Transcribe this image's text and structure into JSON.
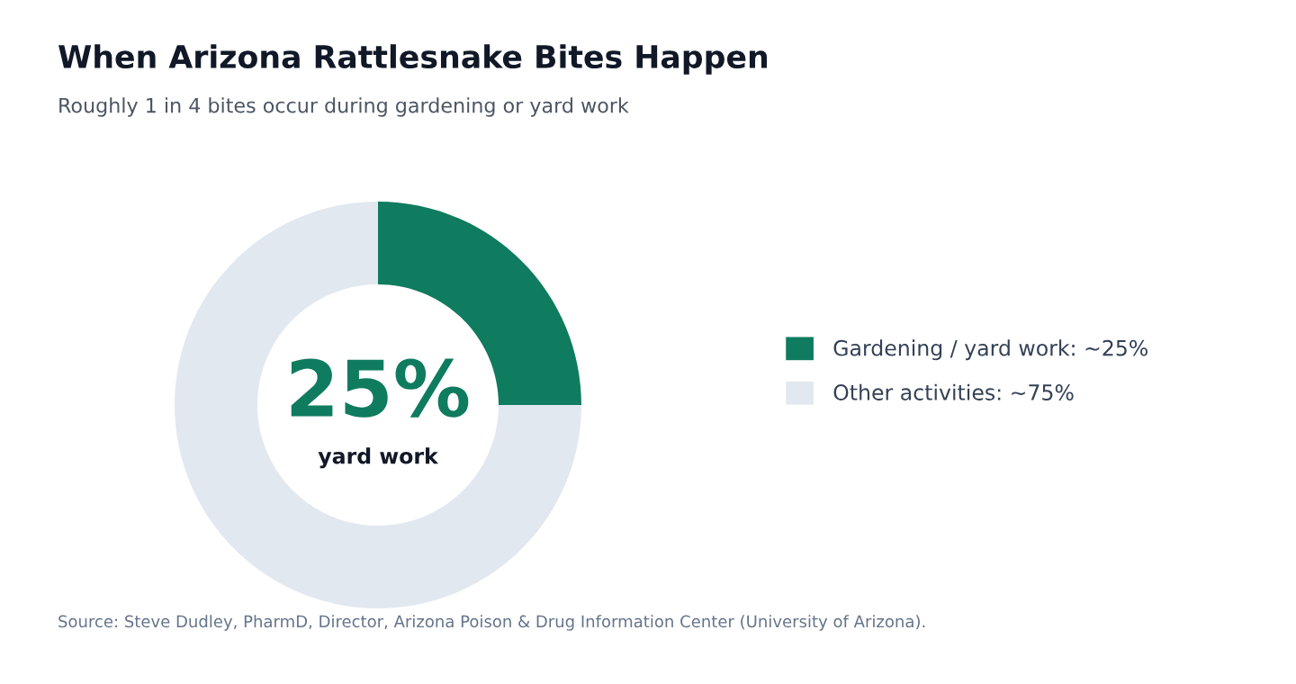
{
  "chart_data": {
    "type": "donut",
    "title": "When Arizona Rattlesnake Bites Happen",
    "subtitle": "Roughly 1 in 4 bites occur during gardening or yard work",
    "categories": [
      "Gardening / yard work: ~25%",
      "Other activities: ~75%"
    ],
    "values": [
      25,
      75
    ],
    "colors": [
      "#0f7b5f",
      "#e2e8f0"
    ],
    "legend": "right",
    "annotations": [
      "25%",
      "yard work",
      "Source: Steve Dudley, PharmD, Director, Arizona Poison & Drug Information Center (University of Arizona)."
    ]
  }
}
